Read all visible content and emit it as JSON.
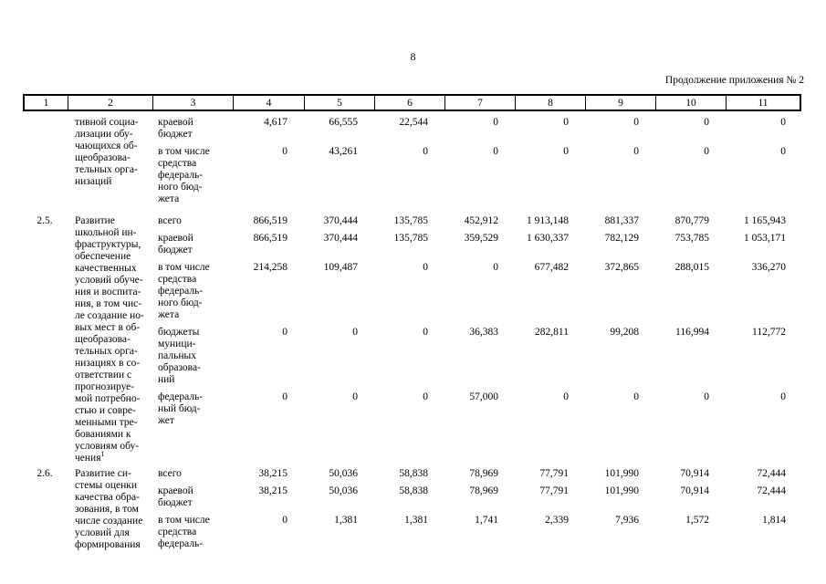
{
  "page": {
    "number": "8",
    "continuation_note": "Продолжение приложения № 2"
  },
  "table": {
    "header_columns": [
      "1",
      "2",
      "3",
      "4",
      "5",
      "6",
      "7",
      "8",
      "9",
      "10",
      "11"
    ],
    "blocks": [
      {
        "num": "",
        "name_lines": [
          "тивной социа-",
          "лизации обу-",
          "чающихся об-",
          "щеобразова-",
          "тельных орга-",
          "низаций"
        ],
        "subrows": [
          {
            "label_lines": [
              "краевой",
              "бюджет"
            ],
            "values": [
              "4,617",
              "66,555",
              "22,544",
              "0",
              "0",
              "0",
              "0",
              "0"
            ]
          },
          {
            "label_lines": [
              "в том числе",
              "средства",
              "федераль-",
              "ного бюд-",
              "жета"
            ],
            "values": [
              "0",
              "43,261",
              "0",
              "0",
              "0",
              "0",
              "0",
              "0"
            ]
          }
        ]
      },
      {
        "num": "2.5.",
        "name_lines": [
          "Развитие",
          "школьной ин-",
          "фраструктуры,",
          "обеспечение",
          "качественных",
          "условий обуче-",
          "ния и воспита-",
          "ния, в том чис-",
          "ле создание но-",
          "вых мест в об-",
          "щеобразова-",
          "тельных орга-",
          "низациях в со-",
          "ответствии с",
          "прогнозируе-",
          "мой потребно-",
          "стью и совре-",
          "менными тре-",
          "бованиями к",
          "условиям обу-",
          "чения"
        ],
        "name_superscript": "1",
        "subrows": [
          {
            "label_lines": [
              "всего"
            ],
            "values": [
              "866,519",
              "370,444",
              "135,785",
              "452,912",
              "1 913,148",
              "881,337",
              "870,779",
              "1 165,943"
            ]
          },
          {
            "label_lines": [
              "краевой",
              "бюджет"
            ],
            "values": [
              "866,519",
              "370,444",
              "135,785",
              "359,529",
              "1 630,337",
              "782,129",
              "753,785",
              "1 053,171"
            ]
          },
          {
            "label_lines": [
              "в том числе",
              "средства",
              "федераль-",
              "ного бюд-",
              "жета"
            ],
            "values": [
              "214,258",
              "109,487",
              "0",
              "0",
              "677,482",
              "372,865",
              "288,015",
              "336,270"
            ]
          },
          {
            "label_lines": [
              "бюджеты",
              "муници-",
              "пальных",
              "образова-",
              "ний"
            ],
            "values": [
              "0",
              "0",
              "0",
              "36,383",
              "282,811",
              "99,208",
              "116,994",
              "112,772"
            ]
          },
          {
            "label_lines": [
              "федераль-",
              "ный бюд-",
              "жет"
            ],
            "values": [
              "0",
              "0",
              "0",
              "57,000",
              "0",
              "0",
              "0",
              "0"
            ]
          }
        ]
      },
      {
        "num": "2.6.",
        "name_lines": [
          "Развитие си-",
          "стемы оценки",
          "качества обра-",
          "зования, в том",
          "числе создание",
          "условий для",
          "формирования"
        ],
        "subrows": [
          {
            "label_lines": [
              "всего"
            ],
            "values": [
              "38,215",
              "50,036",
              "58,838",
              "78,969",
              "77,791",
              "101,990",
              "70,914",
              "72,444"
            ]
          },
          {
            "label_lines": [
              "краевой",
              "бюджет"
            ],
            "values": [
              "38,215",
              "50,036",
              "58,838",
              "78,969",
              "77,791",
              "101,990",
              "70,914",
              "72,444"
            ]
          },
          {
            "label_lines": [
              "в том числе",
              "средства",
              "федераль-"
            ],
            "values": [
              "0",
              "1,381",
              "1,381",
              "1,741",
              "2,339",
              "7,936",
              "1,572",
              "1,814"
            ]
          }
        ]
      }
    ]
  }
}
